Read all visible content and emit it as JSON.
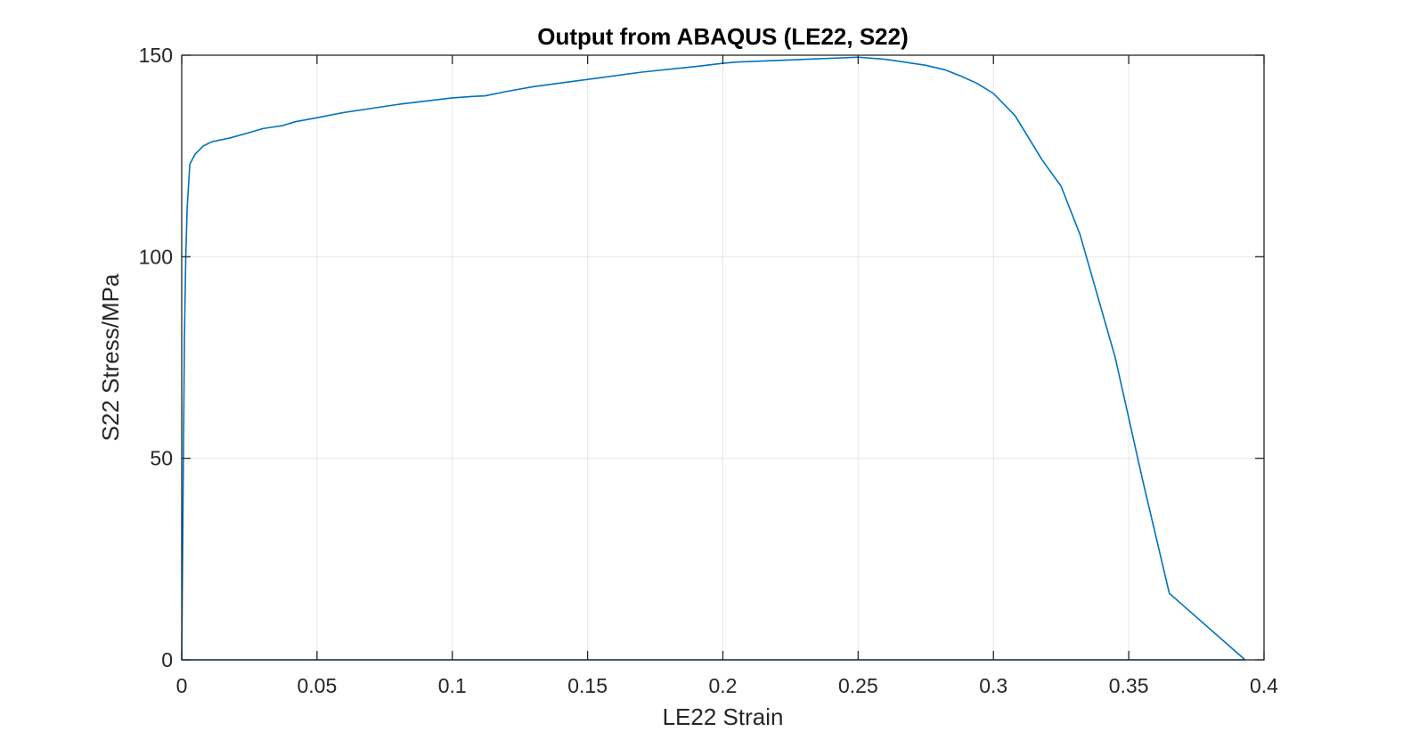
{
  "chart_data": {
    "type": "line",
    "title": "Output from ABAQUS (LE22, S22)",
    "xlabel": "LE22 Strain",
    "ylabel": "S22 Stress/MPa",
    "xlim": [
      0,
      0.4
    ],
    "ylim": [
      0,
      150
    ],
    "xticks": [
      0,
      0.05,
      0.1,
      0.15,
      0.2,
      0.25,
      0.3,
      0.35,
      0.4
    ],
    "xtick_labels": [
      "0",
      "0.05",
      "0.1",
      "0.15",
      "0.2",
      "0.25",
      "0.3",
      "0.35",
      "0.4"
    ],
    "yticks": [
      0,
      50,
      100,
      150
    ],
    "ytick_labels": [
      "0",
      "50",
      "100",
      "150"
    ],
    "grid": true,
    "legend": false,
    "colors": {
      "line": "#0072BD",
      "axes": "#262626",
      "grid": "#E6E6E6"
    },
    "series": [
      {
        "x": [
          0,
          0.0005,
          0.001,
          0.0015,
          0.002,
          0.003,
          0.005,
          0.008,
          0.011,
          0.018,
          0.025,
          0.03,
          0.035,
          0.037,
          0.042,
          0.05,
          0.06,
          0.07,
          0.08,
          0.09,
          0.1,
          0.108,
          0.112,
          0.12,
          0.13,
          0.15,
          0.17,
          0.19,
          0.2,
          0.205,
          0.25,
          0.26,
          0.27,
          0.275,
          0.282,
          0.288,
          0.294,
          0.3,
          0.308,
          0.318,
          0.325,
          0.332,
          0.345,
          0.355,
          0.365,
          0.393,
          0.2,
          0.1,
          0
        ],
        "y": [
          0,
          40,
          80,
          100,
          112,
          123,
          125.5,
          127.5,
          128.5,
          129.5,
          130.8,
          131.8,
          132.3,
          132.5,
          133.5,
          134.5,
          135.8,
          136.8,
          137.8,
          138.6,
          139.4,
          139.8,
          139.9,
          141,
          142.2,
          144,
          145.8,
          147.2,
          148,
          148.3,
          149.5,
          149,
          148,
          147.5,
          146.4,
          144.8,
          143,
          140.5,
          135,
          124,
          117.5,
          105.5,
          75,
          45,
          16.5,
          0,
          0,
          0,
          0
        ]
      }
    ]
  }
}
